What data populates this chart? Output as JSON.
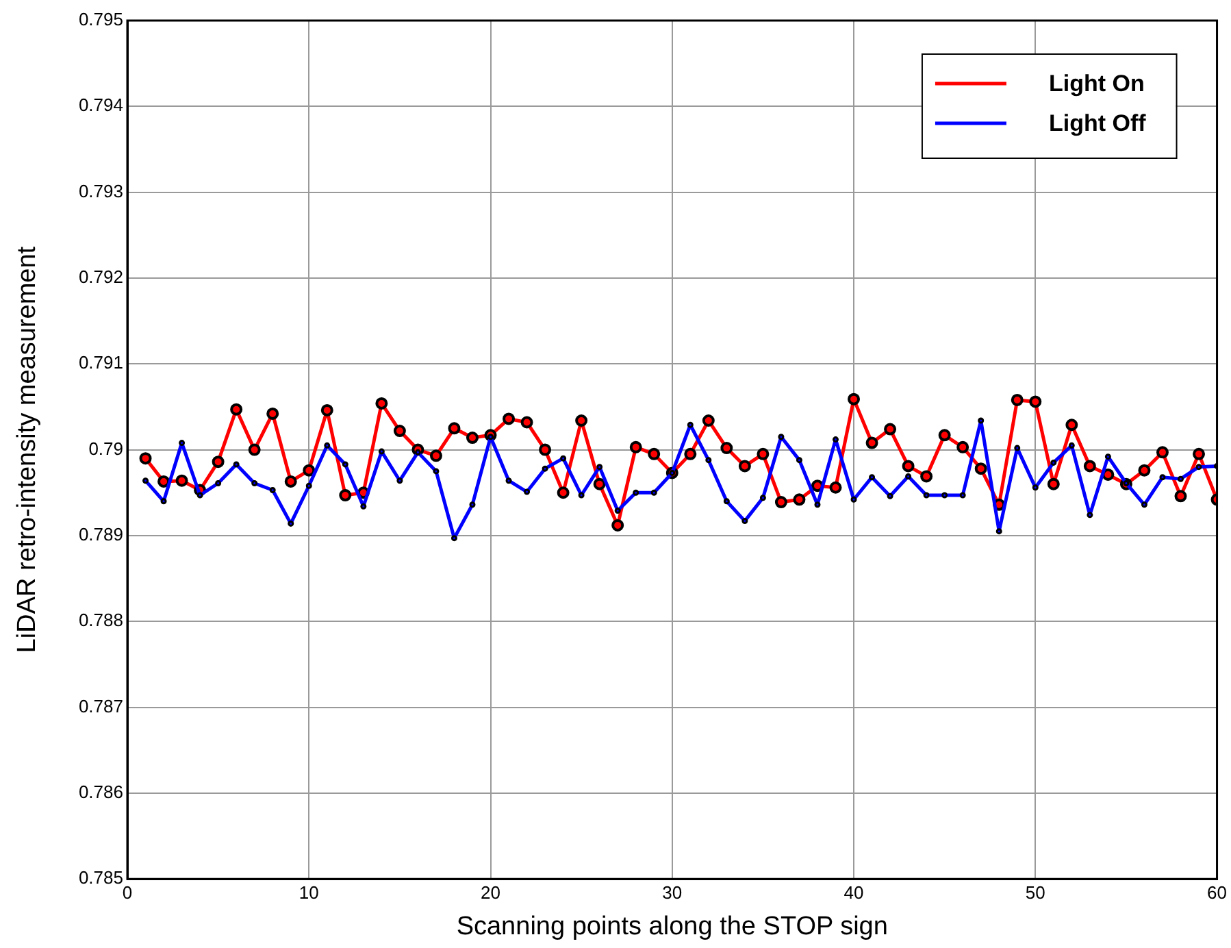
{
  "chart_data": {
    "type": "line",
    "xlabel": "Scanning points along the STOP sign",
    "ylabel": "LiDAR retro-intensity measurement",
    "x": [
      1,
      2,
      3,
      4,
      5,
      6,
      7,
      8,
      9,
      10,
      11,
      12,
      13,
      14,
      15,
      16,
      17,
      18,
      19,
      20,
      21,
      22,
      23,
      24,
      25,
      26,
      27,
      28,
      29,
      30,
      31,
      32,
      33,
      34,
      35,
      36,
      37,
      38,
      39,
      40,
      41,
      42,
      43,
      44,
      45,
      46,
      47,
      48,
      49,
      50,
      51,
      52,
      53,
      54,
      55,
      56,
      57,
      58,
      59,
      60
    ],
    "series": [
      {
        "name": "Light On",
        "color": "#ff0000",
        "marker": "circle",
        "values": [
          0.7899,
          0.78963,
          0.78964,
          0.78953,
          0.78986,
          0.79047,
          0.79,
          0.79042,
          0.78963,
          0.78976,
          0.79046,
          0.78947,
          0.7895,
          0.79054,
          0.79022,
          0.79,
          0.78993,
          0.79025,
          0.79014,
          0.79017,
          0.79036,
          0.79032,
          0.79,
          0.7895,
          0.79034,
          0.7896,
          0.78912,
          0.79003,
          0.78995,
          0.78973,
          0.78995,
          0.79034,
          0.79002,
          0.78981,
          0.78995,
          0.78939,
          0.78942,
          0.78958,
          0.78956,
          0.79059,
          0.79008,
          0.79024,
          0.78981,
          0.78969,
          0.79017,
          0.79003,
          0.78978,
          0.78936,
          0.79058,
          0.79056,
          0.7896,
          0.79029,
          0.78981,
          0.78971,
          0.7896,
          0.78976,
          0.78997,
          0.78946,
          0.78995,
          0.78942
        ]
      },
      {
        "name": "Light Off",
        "color": "#0000ff",
        "marker": "circle",
        "values": [
          0.78964,
          0.7894,
          0.79008,
          0.78947,
          0.78961,
          0.78983,
          0.78961,
          0.78953,
          0.78914,
          0.78958,
          0.79005,
          0.78983,
          0.78934,
          0.78998,
          0.78964,
          0.78997,
          0.78975,
          0.78897,
          0.78936,
          0.79015,
          0.78964,
          0.78951,
          0.78978,
          0.7899,
          0.78947,
          0.7898,
          0.78929,
          0.7895,
          0.7895,
          0.78973,
          0.79029,
          0.78988,
          0.7894,
          0.78917,
          0.78944,
          0.79015,
          0.78988,
          0.78936,
          0.79012,
          0.78942,
          0.78968,
          0.78946,
          0.78969,
          0.78947,
          0.78947,
          0.78947,
          0.79034,
          0.78905,
          0.79002,
          0.78956,
          0.78985,
          0.79005,
          0.78924,
          0.78992,
          0.78961,
          0.78936,
          0.78968,
          0.78966,
          0.7898,
          0.78981
        ]
      }
    ],
    "xlim": [
      0,
      60
    ],
    "xticks": [
      0,
      10,
      20,
      30,
      40,
      50,
      60
    ],
    "ylim": [
      0.785,
      0.795
    ],
    "yticks": [
      0.785,
      0.786,
      0.787,
      0.788,
      0.789,
      0.79,
      0.791,
      0.792,
      0.793,
      0.794,
      0.795
    ],
    "grid": true,
    "legend": "top right",
    "line_style": "solid"
  }
}
